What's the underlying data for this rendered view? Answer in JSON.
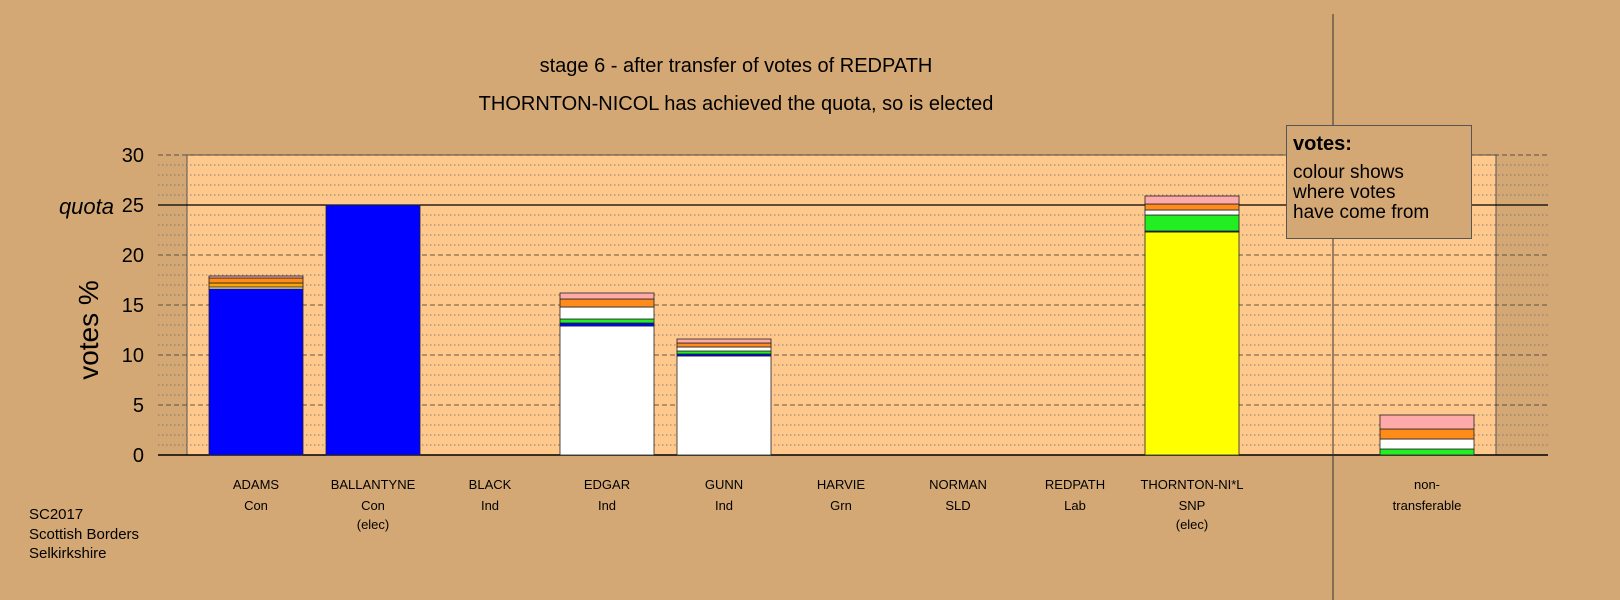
{
  "chart_data": {
    "type": "bar",
    "stacked": true,
    "title": "stage 6 - after transfer of votes of REDPATH",
    "subtitle": "THORNTON-NICOL has achieved the quota, so is elected",
    "ylabel": "votes %",
    "ylim": [
      0,
      30
    ],
    "yticks": [
      0,
      5,
      10,
      15,
      20,
      25,
      30
    ],
    "quota": 25,
    "quota_label": "quota",
    "grid": true,
    "colors": {
      "Con": "#0000ff",
      "Ind": "#ffffff",
      "Grn": "#22ee22",
      "Lab": "#ff8c1a",
      "SLD": "#ffa500",
      "SNP": "#ffff00",
      "Red": "#ffaaaa"
    },
    "candidates": [
      {
        "name": "ADAMS",
        "party": "Con",
        "note": "",
        "segments": [
          {
            "color": "#0000ff",
            "value": 16.6
          },
          {
            "color": "#ffffff",
            "value": 0.2
          },
          {
            "color": "#ffa500",
            "value": 0.4
          },
          {
            "color": "#ff8c1a",
            "value": 0.5
          },
          {
            "color": "#ffaaaa",
            "value": 0.2
          }
        ]
      },
      {
        "name": "BALLANTYNE",
        "party": "Con",
        "note": "(elec)",
        "segments": [
          {
            "color": "#0000ff",
            "value": 25.0
          }
        ]
      },
      {
        "name": "BLACK",
        "party": "Ind",
        "note": "",
        "segments": []
      },
      {
        "name": "EDGAR",
        "party": "Ind",
        "note": "",
        "segments": [
          {
            "color": "#ffffff",
            "value": 12.9
          },
          {
            "color": "#0000ff",
            "value": 0.3
          },
          {
            "color": "#22ee22",
            "value": 0.4
          },
          {
            "color": "#ffffff",
            "value": 1.2
          },
          {
            "color": "#ff8c1a",
            "value": 0.8
          },
          {
            "color": "#ffaaaa",
            "value": 0.6
          }
        ]
      },
      {
        "name": "GUNN",
        "party": "Ind",
        "note": "",
        "segments": [
          {
            "color": "#ffffff",
            "value": 9.9
          },
          {
            "color": "#0000ff",
            "value": 0.2
          },
          {
            "color": "#22ee22",
            "value": 0.3
          },
          {
            "color": "#ffffff",
            "value": 0.4
          },
          {
            "color": "#ff8c1a",
            "value": 0.4
          },
          {
            "color": "#ffaaaa",
            "value": 0.4
          }
        ]
      },
      {
        "name": "HARVIE",
        "party": "Grn",
        "note": "",
        "segments": []
      },
      {
        "name": "NORMAN",
        "party": "SLD",
        "note": "",
        "segments": []
      },
      {
        "name": "REDPATH",
        "party": "Lab",
        "note": "",
        "segments": []
      },
      {
        "name": "THORNTON-NI*L",
        "party": "SNP",
        "note": "(elec)",
        "segments": [
          {
            "color": "#ffff00",
            "value": 22.3
          },
          {
            "color": "#0000ff",
            "value": 0.1
          },
          {
            "color": "#22ee22",
            "value": 1.6
          },
          {
            "color": "#ffffff",
            "value": 0.5
          },
          {
            "color": "#ff8c1a",
            "value": 0.6
          },
          {
            "color": "#ffaaaa",
            "value": 0.8
          }
        ]
      }
    ],
    "nontransferable": {
      "label_lines": [
        "non-",
        "transferable"
      ],
      "segments": [
        {
          "color": "#22ee22",
          "value": 0.6
        },
        {
          "color": "#ffffff",
          "value": 1.0
        },
        {
          "color": "#ff8c1a",
          "value": 1.0
        },
        {
          "color": "#ffaaaa",
          "value": 1.4
        }
      ]
    }
  },
  "legend": {
    "title": "votes:",
    "lines": [
      "colour shows",
      "where votes",
      "have come from"
    ]
  },
  "footer": {
    "line1": "SC2017",
    "line2": "Scottish Borders",
    "line3": "Selkirkshire"
  }
}
